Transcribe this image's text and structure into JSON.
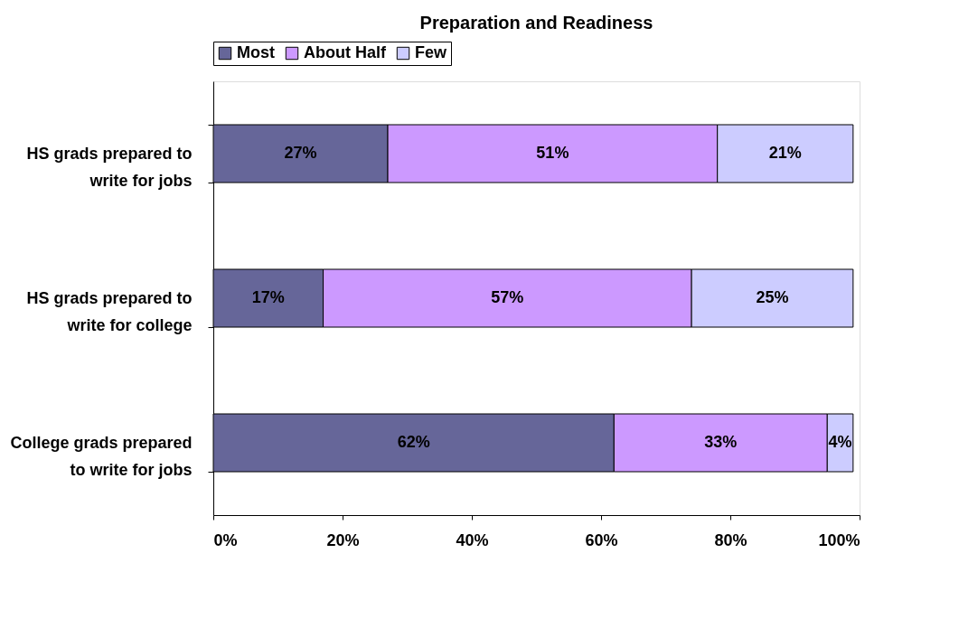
{
  "chart_data": {
    "type": "bar",
    "orientation": "horizontal",
    "stacked": true,
    "title": "Preparation and Readiness",
    "categories": [
      "HS grads prepared to write for jobs",
      "HS grads prepared to write for college",
      "College grads prepared to write for jobs"
    ],
    "series": [
      {
        "name": "Most",
        "color": "#666699",
        "values": [
          27,
          17,
          62
        ],
        "value_labels": [
          "27%",
          "17%",
          "62%"
        ]
      },
      {
        "name": "About Half",
        "color": "#cc99ff",
        "values": [
          51,
          57,
          33
        ],
        "value_labels": [
          "51%",
          "57%",
          "33%"
        ]
      },
      {
        "name": "Few",
        "color": "#ccccff",
        "values": [
          21,
          25,
          4
        ],
        "value_labels": [
          "21%",
          "25%",
          "4%"
        ]
      }
    ],
    "xlim": [
      0,
      100
    ],
    "xticks": [
      {
        "value": 0,
        "label": "0%"
      },
      {
        "value": 20,
        "label": "20%"
      },
      {
        "value": 40,
        "label": "40%"
      },
      {
        "value": 60,
        "label": "60%"
      },
      {
        "value": 80,
        "label": "80%"
      },
      {
        "value": 100,
        "label": "100%"
      }
    ],
    "grid": false,
    "legend": "top"
  }
}
